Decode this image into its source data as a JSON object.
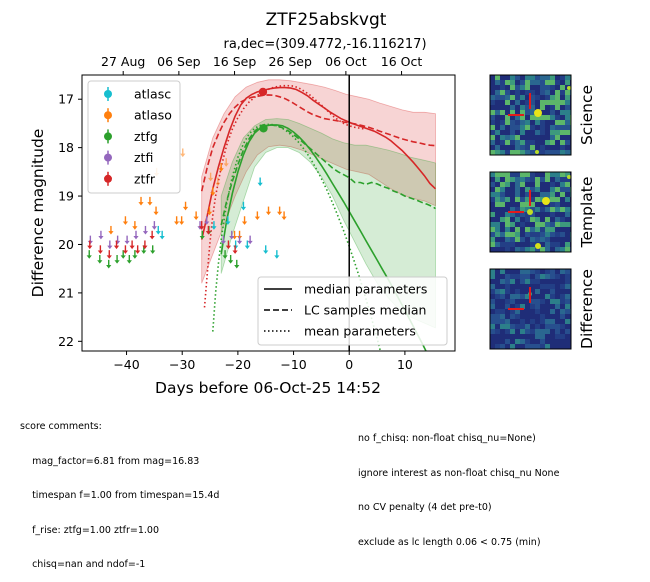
{
  "title": "ZTF25abskvgt",
  "subtitle": "ra,dec=(309.4772,-16.116217)",
  "xlabel": "Days before 06-Oct-25 14:52",
  "ylabel": "Difference magnitude",
  "top_axis_labels": [
    "27 Aug",
    "06 Sep",
    "16 Sep",
    "26 Sep",
    "06 Oct",
    "16 Oct"
  ],
  "legend_bands": [
    "atlasc",
    "atlaso",
    "ztfg",
    "ztfi",
    "ztfr"
  ],
  "legend_lines": [
    "median parameters",
    "LC samples median",
    "mean parameters"
  ],
  "thumbnails": [
    "Science",
    "Template",
    "Difference"
  ],
  "comments_left": [
    "score comments:",
    "    mag_factor=6.81 from mag=16.83",
    "    timespan f=1.00 from timespan=15.4d",
    "    f_rise: ztfg=1.00 ztfr=1.00",
    "    chisq=nan and ndof=-1"
  ],
  "comments_right": [
    "no f_chisq: non-float chisq_nu=None)",
    "ignore interest as non-float chisq_nu None",
    "no CV penalty (4 det pre-t0)",
    "exclude as lc length 0.06 < 0.75 (min)"
  ],
  "chart_data": {
    "type": "scatter",
    "title": "ZTF25abskvgt",
    "subtitle": "ra,dec=(309.4772,-16.116217)",
    "xlabel": "Days before 06-Oct-25 14:52",
    "ylabel": "Difference magnitude",
    "xlim": [
      -48,
      19
    ],
    "ylim": [
      22.2,
      16.5
    ],
    "x_ticks": [
      -40,
      -30,
      -20,
      -10,
      0,
      10
    ],
    "y_ticks": [
      17,
      18,
      19,
      20,
      21,
      22
    ],
    "top_ticks": [
      {
        "x": -40.6,
        "label": "27 Aug"
      },
      {
        "x": -30.6,
        "label": "06 Sep"
      },
      {
        "x": -20.6,
        "label": "16 Sep"
      },
      {
        "x": -10.6,
        "label": "26 Sep"
      },
      {
        "x": -0.6,
        "label": "06 Oct"
      },
      {
        "x": 9.4,
        "label": "16 Oct"
      }
    ],
    "vline_x": 0,
    "legend_position": "upper left",
    "colors": {
      "atlasc": "#17becf",
      "atlaso": "#ff7f0e",
      "ztfg": "#2ca02c",
      "ztfi": "#9467bd",
      "ztfr": "#d62728"
    },
    "series": [
      {
        "name": "atlasc",
        "kind": "upper_limit",
        "points": [
          [
            -34.3,
            19.7
          ],
          [
            -33.6,
            19.8
          ],
          [
            -24.3,
            19.6
          ],
          [
            -21.8,
            19.5
          ],
          [
            -20.4,
            20.0
          ],
          [
            -19.0,
            19.2
          ],
          [
            -18.3,
            20.0
          ],
          [
            -16.0,
            18.7
          ],
          [
            -15.0,
            20.1
          ],
          [
            -13.0,
            20.2
          ]
        ]
      },
      {
        "name": "atlaso",
        "kind": "upper_limit",
        "points": [
          [
            -42.8,
            19.7
          ],
          [
            -40.2,
            19.5
          ],
          [
            -38.5,
            19.6
          ],
          [
            -37.4,
            19.1
          ],
          [
            -35.8,
            19.1
          ],
          [
            -34.7,
            19.3
          ],
          [
            -31.0,
            19.5
          ],
          [
            -30.1,
            19.5
          ],
          [
            -29.4,
            19.2
          ],
          [
            -27.5,
            19.4
          ],
          [
            -25.1,
            19.3
          ],
          [
            -24.5,
            18.9
          ],
          [
            -23.0,
            18.4
          ],
          [
            -20.6,
            19.8
          ],
          [
            -19.7,
            19.8
          ],
          [
            -18.8,
            19.5
          ],
          [
            -16.5,
            19.4
          ],
          [
            -14.5,
            19.3
          ],
          [
            -12.5,
            19.3
          ],
          [
            -11.7,
            19.4
          ]
        ]
      },
      {
        "name": "atlaso",
        "kind": "upper_limit_faint",
        "points": [
          [
            -34.6,
            18.5
          ],
          [
            -29.9,
            18.1
          ],
          [
            -24.9,
            18.6
          ],
          [
            -23.6,
            18.7
          ],
          [
            -22.1,
            18.3
          ]
        ]
      },
      {
        "name": "ztfg",
        "kind": "upper_limit",
        "points": [
          [
            -46.7,
            20.2
          ],
          [
            -44.8,
            20.3
          ],
          [
            -43.2,
            20.4
          ],
          [
            -41.7,
            20.3
          ],
          [
            -40.6,
            20.2
          ],
          [
            -39.5,
            20.3
          ],
          [
            -38.5,
            20.2
          ],
          [
            -36.9,
            20.1
          ],
          [
            -35.3,
            20.1
          ],
          [
            -26.4,
            19.8
          ],
          [
            -25.2,
            19.7
          ],
          [
            -22.3,
            20.2
          ],
          [
            -21.3,
            20.3
          ],
          [
            -20.2,
            20.4
          ]
        ]
      },
      {
        "name": "ztfg",
        "kind": "detection",
        "points": [
          [
            -15.4,
            17.6,
            0.05
          ]
        ]
      },
      {
        "name": "ztfi",
        "kind": "upper_limit",
        "points": [
          [
            -46.5,
            19.9
          ],
          [
            -44.6,
            19.8
          ],
          [
            -43.0,
            20.0
          ],
          [
            -41.6,
            19.9
          ],
          [
            -39.9,
            19.9
          ],
          [
            -38.3,
            19.8
          ],
          [
            -36.6,
            19.7
          ],
          [
            -35.0,
            19.6
          ],
          [
            -26.8,
            19.6
          ],
          [
            -25.6,
            19.5
          ],
          [
            -22.6,
            19.9
          ],
          [
            -21.1,
            19.8
          ],
          [
            -19.7,
            19.9
          ],
          [
            -17.8,
            19.9
          ]
        ]
      },
      {
        "name": "ztfr",
        "kind": "upper_limit",
        "points": [
          [
            -46.6,
            20.0
          ],
          [
            -44.7,
            20.1
          ],
          [
            -43.1,
            20.2
          ],
          [
            -41.8,
            20.0
          ],
          [
            -40.2,
            20.1
          ],
          [
            -39.0,
            20.0
          ],
          [
            -38.0,
            20.1
          ],
          [
            -36.7,
            20.0
          ],
          [
            -35.4,
            19.8
          ],
          [
            -26.5,
            19.6
          ],
          [
            -25.3,
            19.7
          ],
          [
            -21.7,
            20.0
          ],
          [
            -20.5,
            20.1
          ]
        ]
      },
      {
        "name": "ztfr",
        "kind": "detection",
        "points": [
          [
            -15.5,
            16.85,
            0.05
          ]
        ]
      }
    ],
    "model_curves": [
      {
        "band": "ztfr",
        "style": "median parameters",
        "x": [
          -26.5,
          -25.5,
          -24.5,
          -23.5,
          -22.5,
          -21.5,
          -20.5,
          -19.5,
          -18.5,
          -17.5,
          -16.5,
          -15.5,
          -14.5,
          -13.5,
          -12.5,
          -11.5,
          -10.5,
          -9.5,
          -8.5,
          -7.5,
          -6.5,
          -5.5,
          -4.5,
          -3.5,
          -2.5,
          -1.5,
          -0.5,
          0.5,
          1.5,
          2.5,
          3.5,
          4.5,
          5.5,
          6.5,
          7.5,
          8.5,
          9.5,
          10.5,
          11.5,
          12.5,
          13.5,
          14.5,
          15.5
        ],
        "y": [
          19.9,
          19.4,
          18.85,
          18.4,
          18.0,
          17.65,
          17.35,
          17.12,
          16.98,
          16.9,
          16.85,
          16.82,
          16.79,
          16.77,
          16.76,
          16.76,
          16.77,
          16.8,
          16.86,
          16.93,
          17.02,
          17.1,
          17.18,
          17.26,
          17.33,
          17.4,
          17.45,
          17.5,
          17.54,
          17.58,
          17.62,
          17.66,
          17.72,
          17.78,
          17.86,
          17.96,
          18.06,
          18.18,
          18.3,
          18.44,
          18.58,
          18.74,
          18.85
        ]
      },
      {
        "band": "ztfr",
        "style": "LC samples median",
        "x": [
          -26.5,
          -25.5,
          -24.5,
          -23.5,
          -22.5,
          -21.5,
          -20.5,
          -19.5,
          -18.5,
          -17.5,
          -16.5,
          -15.5,
          -14.5,
          -13.5,
          -12.5,
          -11.5,
          -10.5,
          -9.5,
          -8.5,
          -7.5,
          -6.5,
          -5.5,
          -4.5,
          -3.5,
          -2.5,
          -1.5,
          -0.5,
          0.5,
          1.5,
          2.5,
          3.5,
          4.5,
          5.5,
          6.5,
          7.5,
          8.5,
          9.5,
          10.5,
          11.5,
          12.5,
          13.5,
          14.5,
          15.5
        ],
        "y": [
          18.9,
          18.4,
          18.0,
          17.72,
          17.48,
          17.3,
          17.16,
          17.06,
          17.0,
          16.96,
          16.94,
          16.92,
          16.91,
          16.92,
          16.95,
          16.99,
          17.05,
          17.12,
          17.19,
          17.26,
          17.32,
          17.36,
          17.4,
          17.42,
          17.44,
          17.46,
          17.48,
          17.5,
          17.52,
          17.55,
          17.58,
          17.62,
          17.66,
          17.7,
          17.74,
          17.78,
          17.82,
          17.85,
          17.88,
          17.9,
          17.93,
          17.95,
          17.96
        ]
      },
      {
        "band": "ztfr",
        "style": "mean parameters",
        "x": [
          -26.0,
          -25.5,
          -25.0,
          -24.5,
          -24.0,
          -23.0,
          -22.0,
          -21.0,
          -20.0,
          -19.0,
          -18.0,
          -17.0,
          -16.0,
          -15.0,
          -14.0,
          -13.0,
          -12.0,
          -11.0,
          -10.0,
          -9.0,
          -8.0,
          -7.0,
          -6.0,
          -5.0,
          -4.0,
          -3.0,
          -2.0,
          -1.0,
          0.0,
          1.0,
          2.0,
          3.0
        ],
        "y": [
          21.3,
          20.6,
          19.95,
          19.4,
          19.0,
          18.4,
          17.95,
          17.62,
          17.38,
          17.2,
          17.06,
          16.96,
          16.88,
          16.82,
          16.77,
          16.74,
          16.72,
          16.72,
          16.73,
          16.77,
          16.84,
          16.92,
          17.02,
          17.12,
          17.23,
          17.34,
          17.43,
          17.5,
          17.55,
          17.58,
          17.6,
          17.62
        ]
      },
      {
        "band": "ztfg",
        "style": "median parameters",
        "x": [
          -23.0,
          -22.0,
          -21.0,
          -20.0,
          -19.0,
          -18.0,
          -17.0,
          -16.0,
          -15.0,
          -14.0,
          -13.0,
          -12.0,
          -11.0,
          -10.0,
          -9.0,
          -8.0,
          -7.0,
          -6.0,
          -5.0,
          -4.0,
          -3.0,
          -2.0,
          -1.0,
          0.0,
          1.0,
          2.0,
          3.0,
          4.0,
          5.0,
          6.0,
          7.0,
          8.0,
          9.0,
          10.0,
          11.0,
          12.0,
          13.0,
          14.0,
          15.0,
          15.5
        ],
        "y": [
          20.2,
          19.5,
          18.95,
          18.5,
          18.15,
          17.88,
          17.7,
          17.6,
          17.55,
          17.53,
          17.53,
          17.55,
          17.6,
          17.68,
          17.78,
          17.9,
          18.04,
          18.2,
          18.37,
          18.55,
          18.74,
          18.93,
          19.12,
          19.32,
          19.52,
          19.72,
          19.92,
          20.12,
          20.32,
          20.52,
          20.72,
          20.93,
          21.14,
          21.36,
          21.58,
          21.8,
          22.02,
          22.25,
          22.48,
          22.6
        ]
      },
      {
        "band": "ztfg",
        "style": "LC samples median",
        "x": [
          -23.0,
          -22.0,
          -21.0,
          -20.0,
          -19.0,
          -18.0,
          -17.0,
          -16.0,
          -15.0,
          -14.0,
          -13.0,
          -12.0,
          -11.0,
          -10.0,
          -9.0,
          -8.0,
          -7.0,
          -6.0,
          -5.0,
          -4.0,
          -3.0,
          -2.0,
          -1.0,
          0.0,
          1.0,
          2.0,
          3.0,
          4.0,
          5.0,
          6.0,
          7.0,
          8.0,
          9.0,
          10.0,
          11.0,
          12.0,
          13.0,
          14.0,
          15.0,
          15.5
        ],
        "y": [
          19.6,
          19.1,
          18.7,
          18.35,
          18.05,
          17.82,
          17.66,
          17.57,
          17.54,
          17.53,
          17.55,
          17.59,
          17.65,
          17.73,
          17.82,
          17.92,
          18.02,
          18.12,
          18.22,
          18.32,
          18.42,
          18.5,
          18.56,
          18.62,
          18.72,
          18.72,
          18.76,
          18.72,
          18.75,
          18.8,
          18.84,
          18.9,
          18.94,
          19.0,
          19.04,
          19.08,
          19.13,
          19.17,
          19.22,
          19.26
        ]
      },
      {
        "band": "ztfg",
        "style": "mean parameters",
        "x": [
          -24.5,
          -24.0,
          -23.5,
          -23.0,
          -22.5,
          -22.0,
          -21.0,
          -20.0,
          -19.0,
          -18.0,
          -17.0,
          -16.0,
          -15.0,
          -14.0,
          -13.0,
          -12.0,
          -11.0,
          -10.0,
          -9.0,
          -8.0,
          -7.0,
          -6.0,
          -5.0,
          -4.0,
          -3.0,
          -2.0,
          -1.0,
          0.0,
          1.0,
          2.0,
          3.0,
          4.0,
          5.0,
          6.0,
          7.0,
          8.0,
          9.0,
          10.0,
          11.0
        ],
        "y": [
          21.8,
          21.0,
          20.4,
          19.9,
          19.5,
          19.15,
          18.6,
          18.2,
          17.92,
          17.72,
          17.6,
          17.54,
          17.52,
          17.52,
          17.55,
          17.6,
          17.68,
          17.78,
          17.9,
          18.05,
          18.22,
          18.42,
          18.64,
          18.88,
          19.14,
          19.42,
          19.72,
          20.04,
          20.38,
          20.74,
          21.12,
          21.52,
          21.94,
          22.38,
          22.84,
          23.3,
          23.8,
          24.3,
          24.8
        ]
      }
    ],
    "bands_fill": [
      {
        "band": "ztfr",
        "x": [
          -26.5,
          -24.5,
          -22.5,
          -20.5,
          -18.5,
          -16.5,
          -14.5,
          -12.5,
          -10.5,
          -8.5,
          -6.5,
          -4.5,
          -2.5,
          -0.5,
          1.5,
          3.5,
          5.5,
          7.5,
          9.5,
          11.5,
          13.5,
          15.5
        ],
        "lo": [
          18.6,
          17.8,
          17.3,
          16.95,
          16.75,
          16.65,
          16.6,
          16.6,
          16.62,
          16.66,
          16.7,
          16.75,
          16.82,
          16.9,
          16.95,
          17.0,
          17.08,
          17.15,
          17.22,
          17.27,
          17.27,
          17.3
        ],
        "hi": [
          20.8,
          20.2,
          19.6,
          19.0,
          18.5,
          18.15,
          17.98,
          17.95,
          17.98,
          18.05,
          18.15,
          18.25,
          18.35,
          18.45,
          18.5,
          18.55,
          18.7,
          18.85,
          18.97,
          19.05,
          19.1,
          19.2
        ]
      },
      {
        "band": "ztfg",
        "x": [
          -23.0,
          -21.0,
          -19.0,
          -17.0,
          -15.0,
          -13.0,
          -11.0,
          -9.0,
          -7.0,
          -5.0,
          -3.0,
          -1.0,
          1.0,
          3.0,
          5.0,
          7.0,
          9.0,
          11.0,
          13.0,
          15.0,
          15.5
        ],
        "lo": [
          19.0,
          18.3,
          17.8,
          17.55,
          17.42,
          17.4,
          17.42,
          17.5,
          17.6,
          17.7,
          17.82,
          17.9,
          17.95,
          17.95,
          18.0,
          18.05,
          18.12,
          18.2,
          18.25,
          18.3,
          18.32
        ],
        "hi": [
          20.6,
          19.8,
          19.1,
          18.4,
          18.1,
          18.0,
          18.0,
          18.1,
          18.3,
          18.6,
          19.0,
          19.5,
          19.95,
          20.4,
          20.8,
          21.1,
          21.35,
          21.5,
          21.6,
          21.7,
          21.72
        ]
      }
    ]
  }
}
